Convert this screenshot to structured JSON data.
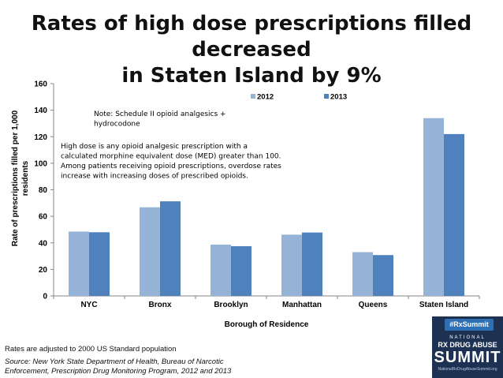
{
  "slide": {
    "title_line1": "Rates of high dose prescriptions filled decreased",
    "title_line2": "in Staten Island by 9%",
    "footnote_rates": "Rates are adjusted to 2000 US Standard population",
    "source_line1": "Source: New York State  Department of Health, Bureau of Narcotic",
    "source_line2": "Enforcement,  Prescription Drug Monitoring Program, 2012 and 2013"
  },
  "badge": {
    "hashtag": "#RxSummit",
    "line1": "NATIONAL",
    "line2": "RX DRUG ABUSE",
    "line3": "SUMMIT",
    "line4": "NationalRxDrugAbuseSummit.org"
  },
  "colors": {
    "series_2012": "#95b3d7",
    "series_2013": "#4f81bd",
    "badge_bg": "#1d3152"
  },
  "chart_data": {
    "type": "bar",
    "title": "",
    "xlabel": "Borough of Residence",
    "ylabel_line1": "Rate of prescriptions filled per 1,000",
    "ylabel_line2": "residents",
    "ylim": [
      0,
      160
    ],
    "yticks": [
      0,
      20,
      40,
      60,
      80,
      100,
      120,
      140,
      160
    ],
    "categories": [
      "NYC",
      "Bronx",
      "Brooklyn",
      "Manhattan",
      "Queens",
      "Staten Island"
    ],
    "series": [
      {
        "name": "2012",
        "values": [
          48.5,
          66.8,
          38.7,
          46.2,
          33.0,
          134.0
        ]
      },
      {
        "name": "2013",
        "values": [
          48.0,
          71.3,
          37.5,
          47.8,
          30.8,
          122.0
        ]
      }
    ],
    "legend_position": "top-right",
    "grid": false,
    "annotations": [
      {
        "lines": [
          "Note: Schedule II opioid analgesics +",
          "hydrocodone"
        ]
      },
      {
        "lines": [
          "High dose is any opioid analgesic prescription with a",
          "calculated morphine equivalent dose (MED) greater than 100.",
          "Among patients receiving opioid prescriptions, overdose rates",
          "increase with increasing doses of prescribed opioids."
        ]
      }
    ]
  }
}
